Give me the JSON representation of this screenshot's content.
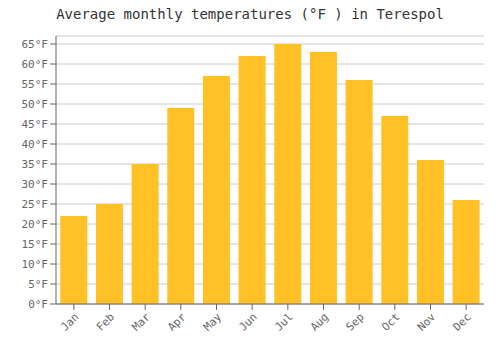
{
  "chart_data": {
    "type": "bar",
    "title": "Average monthly temperatures (°F ) in Terespol",
    "categories": [
      "Jan",
      "Feb",
      "Mar",
      "Apr",
      "May",
      "Jun",
      "Jul",
      "Aug",
      "Sep",
      "Oct",
      "Nov",
      "Dec"
    ],
    "values": [
      22,
      25,
      35,
      49,
      57,
      62,
      65,
      63,
      56,
      47,
      36,
      26
    ],
    "color": "#FFC125",
    "ylim": [
      0,
      67
    ],
    "yticks": [
      {
        "value": 0,
        "label": "0°F"
      },
      {
        "value": 5,
        "label": "5°F"
      },
      {
        "value": 10,
        "label": "10°F"
      },
      {
        "value": 15,
        "label": "15°F"
      },
      {
        "value": 20,
        "label": "20°F"
      },
      {
        "value": 25,
        "label": "25°F"
      },
      {
        "value": 30,
        "label": "30°F"
      },
      {
        "value": 35,
        "label": "35°F"
      },
      {
        "value": 40,
        "label": "40°F"
      },
      {
        "value": 45,
        "label": "45°F"
      },
      {
        "value": 50,
        "label": "50°F"
      },
      {
        "value": 55,
        "label": "55°F"
      },
      {
        "value": 60,
        "label": "60°F"
      },
      {
        "value": 65,
        "label": "65°F"
      }
    ],
    "grid": true
  }
}
